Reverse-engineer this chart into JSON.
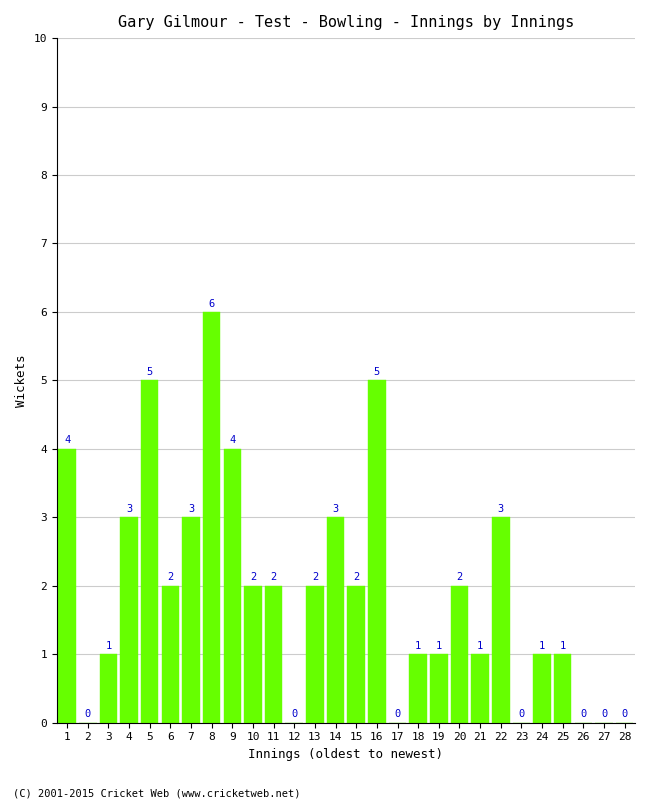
{
  "title": "Gary Gilmour - Test - Bowling - Innings by Innings",
  "xlabel": "Innings (oldest to newest)",
  "ylabel": "Wickets",
  "innings": [
    1,
    2,
    3,
    4,
    5,
    6,
    7,
    8,
    9,
    10,
    11,
    12,
    13,
    14,
    15,
    16,
    17,
    18,
    19,
    20,
    21,
    22,
    23,
    24,
    25,
    26,
    27,
    28
  ],
  "wickets": [
    4,
    0,
    1,
    3,
    5,
    2,
    3,
    6,
    4,
    2,
    2,
    0,
    2,
    3,
    2,
    5,
    0,
    1,
    1,
    2,
    1,
    3,
    0,
    1,
    1,
    0,
    0,
    0
  ],
  "bar_color": "#66ff00",
  "bar_edge_color": "#66ff00",
  "label_color": "#0000cc",
  "background_color": "#ffffff",
  "grid_color": "#cccccc",
  "ylim": [
    0,
    10
  ],
  "yticks": [
    0,
    1,
    2,
    3,
    4,
    5,
    6,
    7,
    8,
    9,
    10
  ],
  "title_fontsize": 11,
  "axis_label_fontsize": 9,
  "tick_fontsize": 8,
  "label_fontsize": 7.5,
  "footer": "(C) 2001-2015 Cricket Web (www.cricketweb.net)"
}
